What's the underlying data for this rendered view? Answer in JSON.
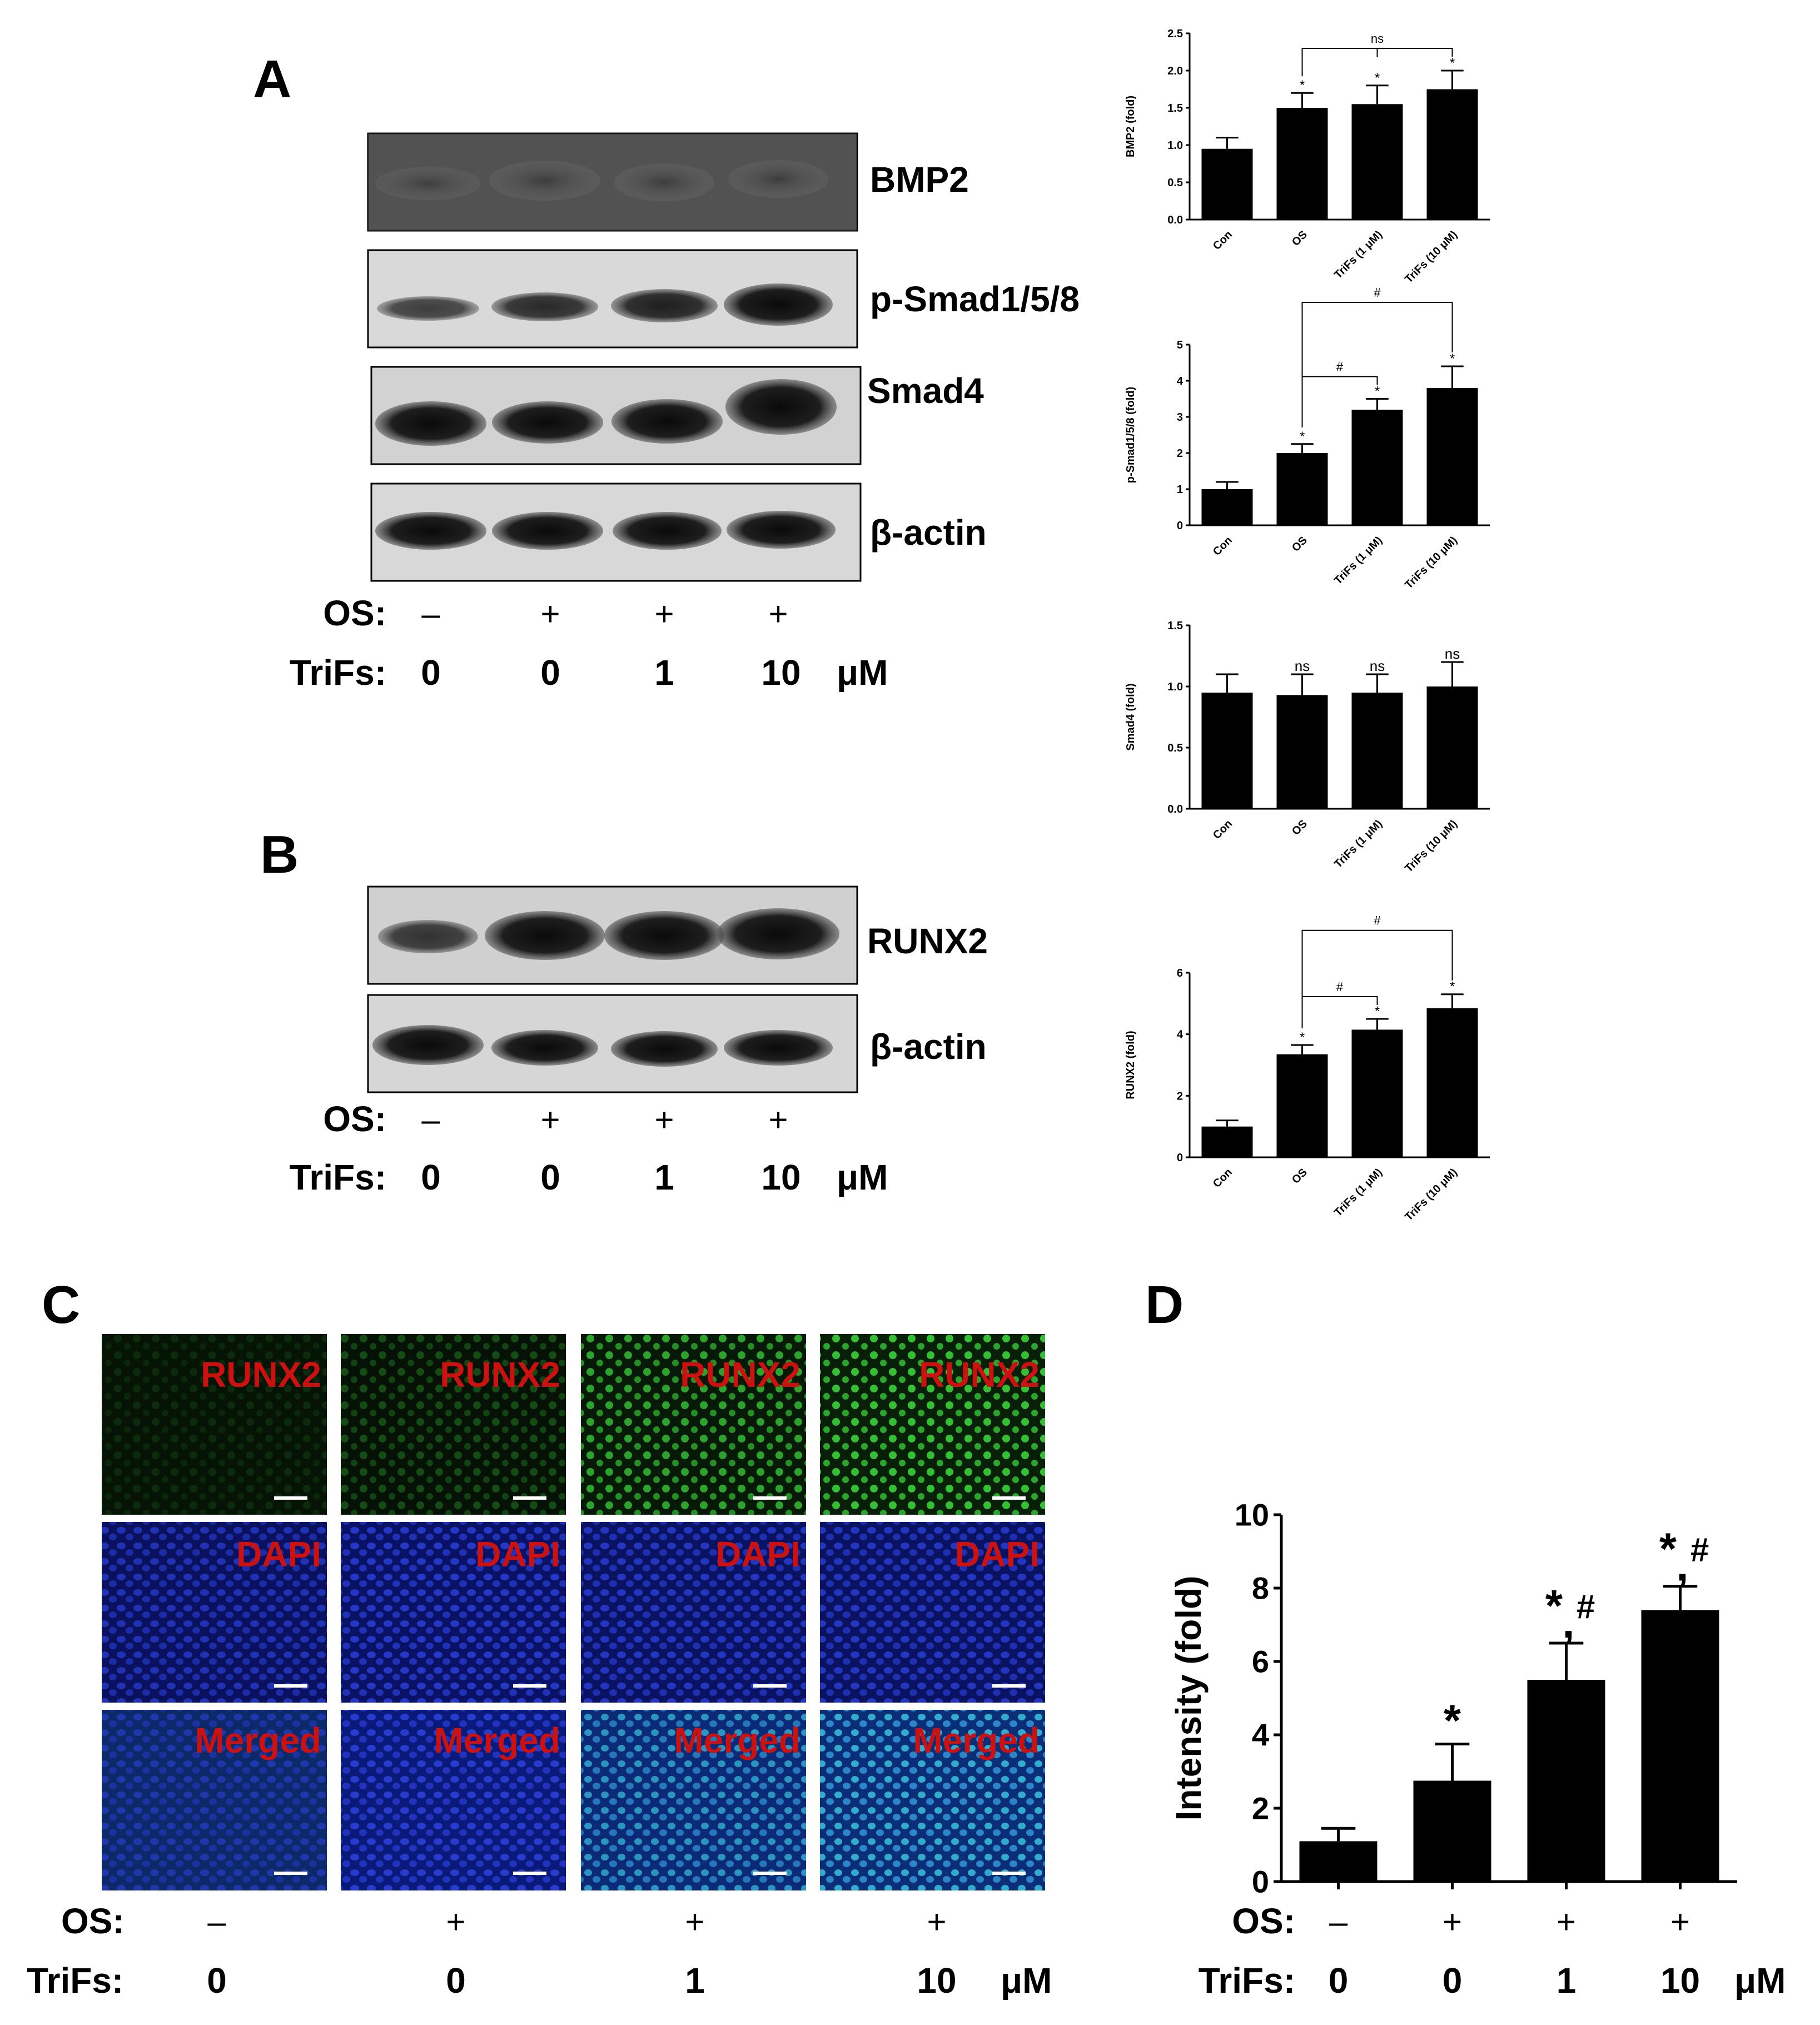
{
  "panels": {
    "a": "A",
    "b": "B",
    "c": "C",
    "d": "D"
  },
  "blot_a": {
    "labels": [
      "BMP2",
      "p-Smad1/5/8",
      "Smad4",
      "β-actin"
    ],
    "os_label": "OS:",
    "os_values": [
      "–",
      "+",
      "+",
      "+"
    ],
    "trifs_label": "TriFs:",
    "trifs_values": [
      "0",
      "0",
      "1",
      "10"
    ],
    "unit": "μM"
  },
  "blot_b": {
    "labels": [
      "RUNX2",
      "β-actin"
    ],
    "os_label": "OS:",
    "os_values": [
      "–",
      "+",
      "+",
      "+"
    ],
    "trifs_label": "TriFs:",
    "trifs_values": [
      "0",
      "0",
      "1",
      "10"
    ],
    "unit": "μM"
  },
  "if_panel": {
    "row_labels": [
      "RUNX2",
      "DAPI",
      "Merged"
    ],
    "label_color": "#cc1111",
    "os_label": "OS:",
    "os_values": [
      "–",
      "+",
      "+",
      "+"
    ],
    "trifs_label": "TriFs:",
    "trifs_values": [
      "0",
      "0",
      "1",
      "10"
    ],
    "unit": "μM"
  },
  "chart_data": [
    {
      "type": "bar",
      "ylabel": "BMP2 (fold)",
      "categories": [
        "Con",
        "OS",
        "TriFs (1 μM)",
        "TriFs (10 μM)"
      ],
      "values": [
        0.95,
        1.5,
        1.55,
        1.75
      ],
      "errors": [
        0.15,
        0.2,
        0.25,
        0.25
      ],
      "ylim": [
        0,
        2.5
      ],
      "yticks": [
        "0.0",
        "0.5",
        "1.0",
        "1.5",
        "2.0",
        "2.5"
      ],
      "marks": [
        "",
        "*",
        "*",
        "*"
      ],
      "brackets": [
        {
          "from": 1,
          "to": 3,
          "label": "ns"
        }
      ]
    },
    {
      "type": "bar",
      "ylabel": "p-Smad1/5/8 (fold)",
      "categories": [
        "Con",
        "OS",
        "TriFs (1 μM)",
        "TriFs (10  μM)"
      ],
      "values": [
        1.0,
        2.0,
        3.2,
        3.8
      ],
      "errors": [
        0.2,
        0.25,
        0.3,
        0.6
      ],
      "ylim": [
        0,
        5
      ],
      "yticks": [
        "0",
        "1",
        "2",
        "3",
        "4",
        "5"
      ],
      "marks": [
        "",
        "*",
        "*",
        "*"
      ],
      "brackets": [
        {
          "from": 1,
          "to": 2,
          "label": "#"
        },
        {
          "from": 1,
          "to": 3,
          "label": "#"
        }
      ]
    },
    {
      "type": "bar",
      "ylabel": "Smad4 (fold)",
      "categories": [
        "Con",
        "OS",
        "TriFs (1 μM)",
        "TriFs (10 μM)"
      ],
      "values": [
        0.95,
        0.93,
        0.95,
        1.0
      ],
      "errors": [
        0.15,
        0.17,
        0.15,
        0.2
      ],
      "ylim": [
        0,
        1.5
      ],
      "yticks": [
        "0.0",
        "0.5",
        "1.0",
        "1.5"
      ],
      "marks": [
        "",
        "ns",
        "ns",
        "ns"
      ],
      "brackets": []
    },
    {
      "type": "bar",
      "ylabel": "RUNX2 (fold)",
      "categories": [
        "Con",
        "OS",
        "TriFs (1 μM)",
        "TriFs (10  μM)"
      ],
      "values": [
        1.0,
        3.35,
        4.15,
        4.85
      ],
      "errors": [
        0.2,
        0.3,
        0.35,
        0.45
      ],
      "ylim": [
        0,
        6
      ],
      "yticks": [
        "0",
        "2",
        "4",
        "6"
      ],
      "marks": [
        "",
        "*",
        "*",
        "*"
      ],
      "brackets": [
        {
          "from": 1,
          "to": 2,
          "label": "#"
        },
        {
          "from": 1,
          "to": 3,
          "label": "#"
        }
      ]
    },
    {
      "type": "bar",
      "ylabel": "Intensity (fold)",
      "categories": [
        "0",
        "0",
        "1",
        "10"
      ],
      "values": [
        1.1,
        2.75,
        5.5,
        7.4
      ],
      "errors": [
        0.35,
        1.0,
        1.0,
        0.65
      ],
      "ylim": [
        0,
        10
      ],
      "yticks": [
        "0",
        "2",
        "4",
        "6",
        "8",
        "10"
      ],
      "marks": [
        "",
        "*",
        "*,#",
        "*,#"
      ],
      "os_label": "OS:",
      "os_values": [
        "–",
        "+",
        "+",
        "+"
      ],
      "trifs_label": "TriFs:",
      "unit": "μM"
    }
  ]
}
